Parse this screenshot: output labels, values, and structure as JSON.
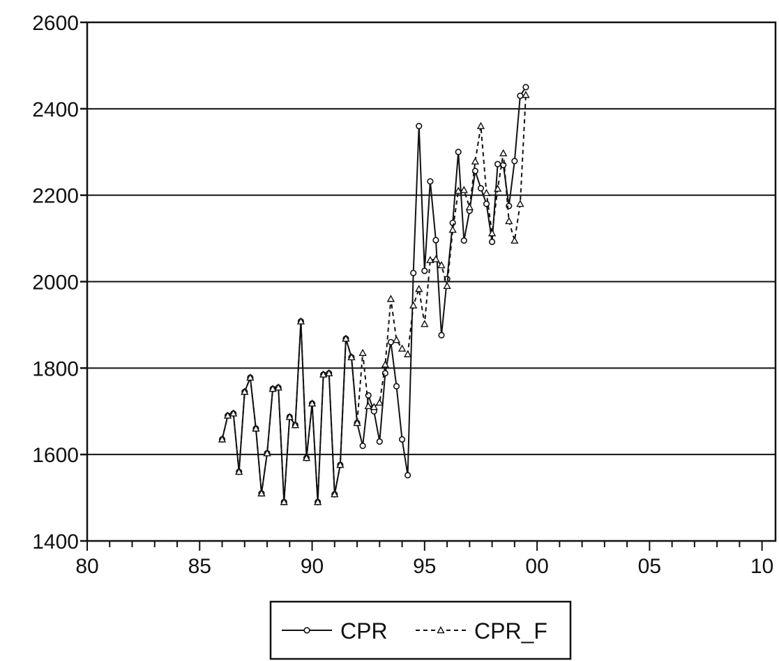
{
  "chart_data": {
    "type": "line",
    "title": "",
    "xlabel": "",
    "ylabel": "",
    "xlim": [
      1980,
      2010.6
    ],
    "ylim": [
      1400,
      2600
    ],
    "x_ticks": [
      {
        "value": 1980,
        "label": "80"
      },
      {
        "value": 1985,
        "label": "85"
      },
      {
        "value": 1990,
        "label": "90"
      },
      {
        "value": 1995,
        "label": "95"
      },
      {
        "value": 2000,
        "label": "00"
      },
      {
        "value": 2005,
        "label": "05"
      },
      {
        "value": 2010,
        "label": "10"
      }
    ],
    "y_ticks": [
      {
        "value": 1400,
        "label": "1400"
      },
      {
        "value": 1600,
        "label": "1600"
      },
      {
        "value": 1800,
        "label": "1800"
      },
      {
        "value": 2000,
        "label": "2000"
      },
      {
        "value": 2200,
        "label": "2200"
      },
      {
        "value": 2400,
        "label": "2400"
      },
      {
        "value": 2600,
        "label": "2600"
      }
    ],
    "grid": "horizontal",
    "legend_position": "bottom-center",
    "x": [
      1986.0,
      1986.25,
      1986.5,
      1986.75,
      1987.0,
      1987.25,
      1987.5,
      1987.75,
      1988.0,
      1988.25,
      1988.5,
      1988.75,
      1989.0,
      1989.25,
      1989.5,
      1989.75,
      1990.0,
      1990.25,
      1990.5,
      1990.75,
      1991.0,
      1991.25,
      1991.5,
      1991.75,
      1992.0,
      1992.25,
      1992.5,
      1992.75,
      1993.0,
      1993.25,
      1993.5,
      1993.75,
      1994.0,
      1994.25,
      1994.5,
      1994.75,
      1995.0,
      1995.25,
      1995.5,
      1995.75,
      1996.0,
      1996.25,
      1996.5,
      1996.75,
      1997.0,
      1997.25,
      1997.5,
      1997.75,
      1998.0,
      1998.25,
      1998.5,
      1998.75,
      1999.0,
      1999.25,
      1999.5
    ],
    "series": [
      {
        "name": "CPR",
        "marker": "circle",
        "line": "solid",
        "values": [
          1635,
          1690,
          1695,
          1560,
          1745,
          1778,
          1660,
          1510,
          1603,
          1752,
          1755,
          1490,
          1687,
          1668,
          1908,
          1592,
          1718,
          1490,
          1785,
          1788,
          1508,
          1576,
          1868,
          1825,
          1673,
          1620,
          1737,
          1700,
          1630,
          1788,
          1860,
          1758,
          1635,
          1552,
          2020,
          2360,
          2025,
          2232,
          2096,
          1876,
          2006,
          2136,
          2300,
          2095,
          2164,
          2256,
          2216,
          2180,
          2092,
          2272,
          2270,
          2175,
          2279,
          2430,
          2450
        ]
      },
      {
        "name": "CPR_F",
        "marker": "triangle",
        "line": "dashed",
        "values": [
          1635,
          1690,
          1695,
          1560,
          1745,
          1778,
          1660,
          1510,
          1603,
          1752,
          1755,
          1490,
          1687,
          1668,
          1908,
          1592,
          1718,
          1490,
          1785,
          1788,
          1508,
          1576,
          1868,
          1825,
          1673,
          1835,
          1712,
          1710,
          1720,
          1808,
          1960,
          1865,
          1845,
          1832,
          1945,
          1983,
          1902,
          2050,
          2052,
          2038,
          1990,
          2120,
          2210,
          2212,
          2172,
          2278,
          2360,
          2205,
          2112,
          2215,
          2297,
          2140,
          2095,
          2180,
          2432
        ]
      }
    ]
  }
}
